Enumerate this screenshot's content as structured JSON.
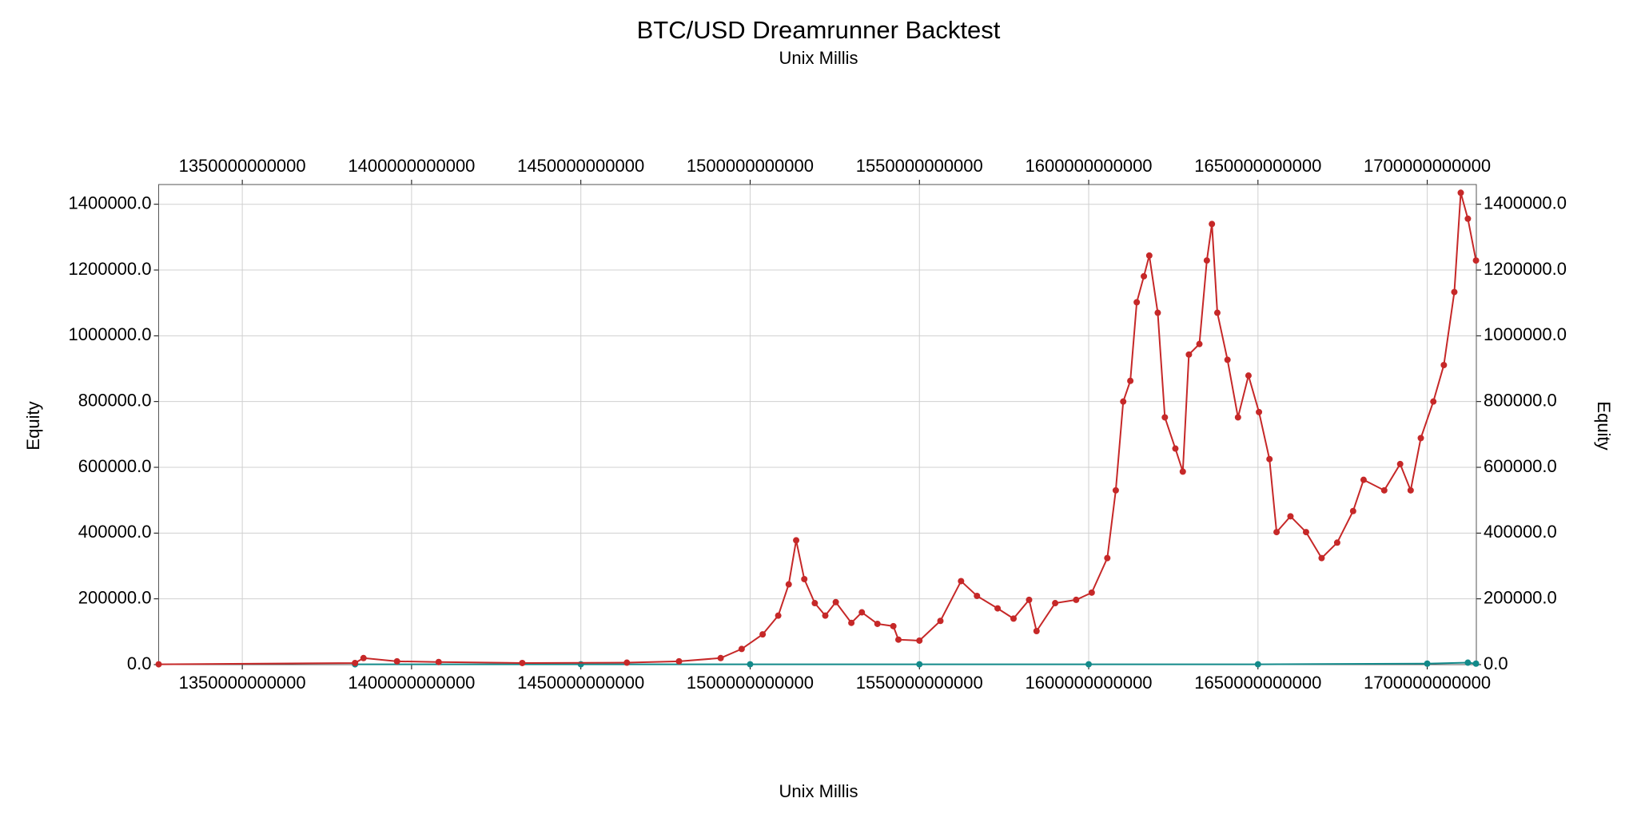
{
  "chart_data": {
    "type": "line",
    "title": "BTC/USD Dreamrunner Backtest",
    "subtitle": "Unix Millis",
    "x_label": "Unix Millis",
    "y_label": "Equity",
    "y2_label": "Equity",
    "grid": true,
    "markers": true,
    "xlim": [
      1325300000000,
      1714500000000
    ],
    "xticks": [
      1350000000000,
      1400000000000,
      1450000000000,
      1500000000000,
      1550000000000,
      1600000000000,
      1650000000000,
      1700000000000
    ],
    "ylim": [
      0,
      1460000
    ],
    "yticks": [
      {
        "value": 0,
        "label": "0.0"
      },
      {
        "value": 200000,
        "label": "200000.0"
      },
      {
        "value": 400000,
        "label": "400000.0"
      },
      {
        "value": 600000,
        "label": "600000.0"
      },
      {
        "value": 800000,
        "label": "800000.0"
      },
      {
        "value": 1000000,
        "label": "1000000.0"
      },
      {
        "value": 1200000,
        "label": "1200000.0"
      },
      {
        "value": 1400000,
        "label": "1400000.0"
      }
    ],
    "y2lim": [
      0,
      1460000
    ],
    "y2ticks": [
      {
        "value": 0,
        "label": "0.0"
      },
      {
        "value": 200000,
        "label": "200000.0"
      },
      {
        "value": 400000,
        "label": "400000.0"
      },
      {
        "value": 600000,
        "label": "600000.0"
      },
      {
        "value": 800000,
        "label": "800000.0"
      },
      {
        "value": 1000000,
        "label": "1000000.0"
      },
      {
        "value": 1200000,
        "label": "1200000.0"
      },
      {
        "value": 1400000,
        "label": "1400000.0"
      }
    ],
    "series": [
      {
        "color": "#c62828",
        "x": [
          1325300000000,
          1383300000000,
          1385800000000,
          1395700000000,
          1408000000000,
          1432700000000,
          1463600000000,
          1479000000000,
          1491300000000,
          1497500000000,
          1503700000000,
          1508300000000,
          1511400000000,
          1513600000000,
          1516000000000,
          1519100000000,
          1522200000000,
          1525300000000,
          1529900000000,
          1533000000000,
          1537600000000,
          1542300000000,
          1543800000000,
          1550000000000,
          1556200000000,
          1562300000000,
          1567000000000,
          1573100000000,
          1577800000000,
          1582400000000,
          1584600000000,
          1590100000000,
          1596300000000,
          1600900000000,
          1605500000000,
          1608000000000,
          1610200000000,
          1612300000000,
          1614200000000,
          1616300000000,
          1617900000000,
          1620400000000,
          1622500000000,
          1625600000000,
          1627800000000,
          1629600000000,
          1632700000000,
          1634900000000,
          1636400000000,
          1638000000000,
          1641000000000,
          1644100000000,
          1647200000000,
          1650300000000,
          1653400000000,
          1655500000000,
          1659600000000,
          1664200000000,
          1668800000000,
          1673400000000,
          1678100000000,
          1681200000000,
          1687300000000,
          1692000000000,
          1695100000000,
          1698100000000,
          1701800000000,
          1704900000000,
          1708000000000,
          1709900000000,
          1712000000000,
          1714400000000
        ],
        "values": [
          1000,
          5000,
          20000,
          10000,
          8000,
          5000,
          6000,
          10000,
          20000,
          47600,
          92000,
          149000,
          244000,
          378000,
          260000,
          187000,
          149000,
          190000,
          127000,
          159000,
          124000,
          117000,
          76000,
          73000,
          133000,
          254000,
          209000,
          171000,
          140000,
          197000,
          102000,
          187000,
          197000,
          219000,
          324000,
          530000,
          800000,
          863000,
          1102000,
          1181000,
          1244000,
          1070000,
          752000,
          657000,
          587000,
          943000,
          975000,
          1229000,
          1340000,
          1070000,
          927000,
          752000,
          879000,
          768000,
          625000,
          403000,
          451000,
          403000,
          324000,
          371000,
          467000,
          562000,
          530000,
          610000,
          530000,
          689000,
          800000,
          911000,
          1133000,
          1435000,
          1356000,
          1229000
        ]
      },
      {
        "color": "#138a8a",
        "x": [
          1383300000000,
          1450000000000,
          1500000000000,
          1550000000000,
          1600000000000,
          1650000000000,
          1700000000000,
          1712000000000,
          1714400000000
        ],
        "values": [
          1000,
          1000,
          1000,
          1000,
          1000,
          1000,
          3000,
          6000,
          3000
        ]
      }
    ]
  }
}
